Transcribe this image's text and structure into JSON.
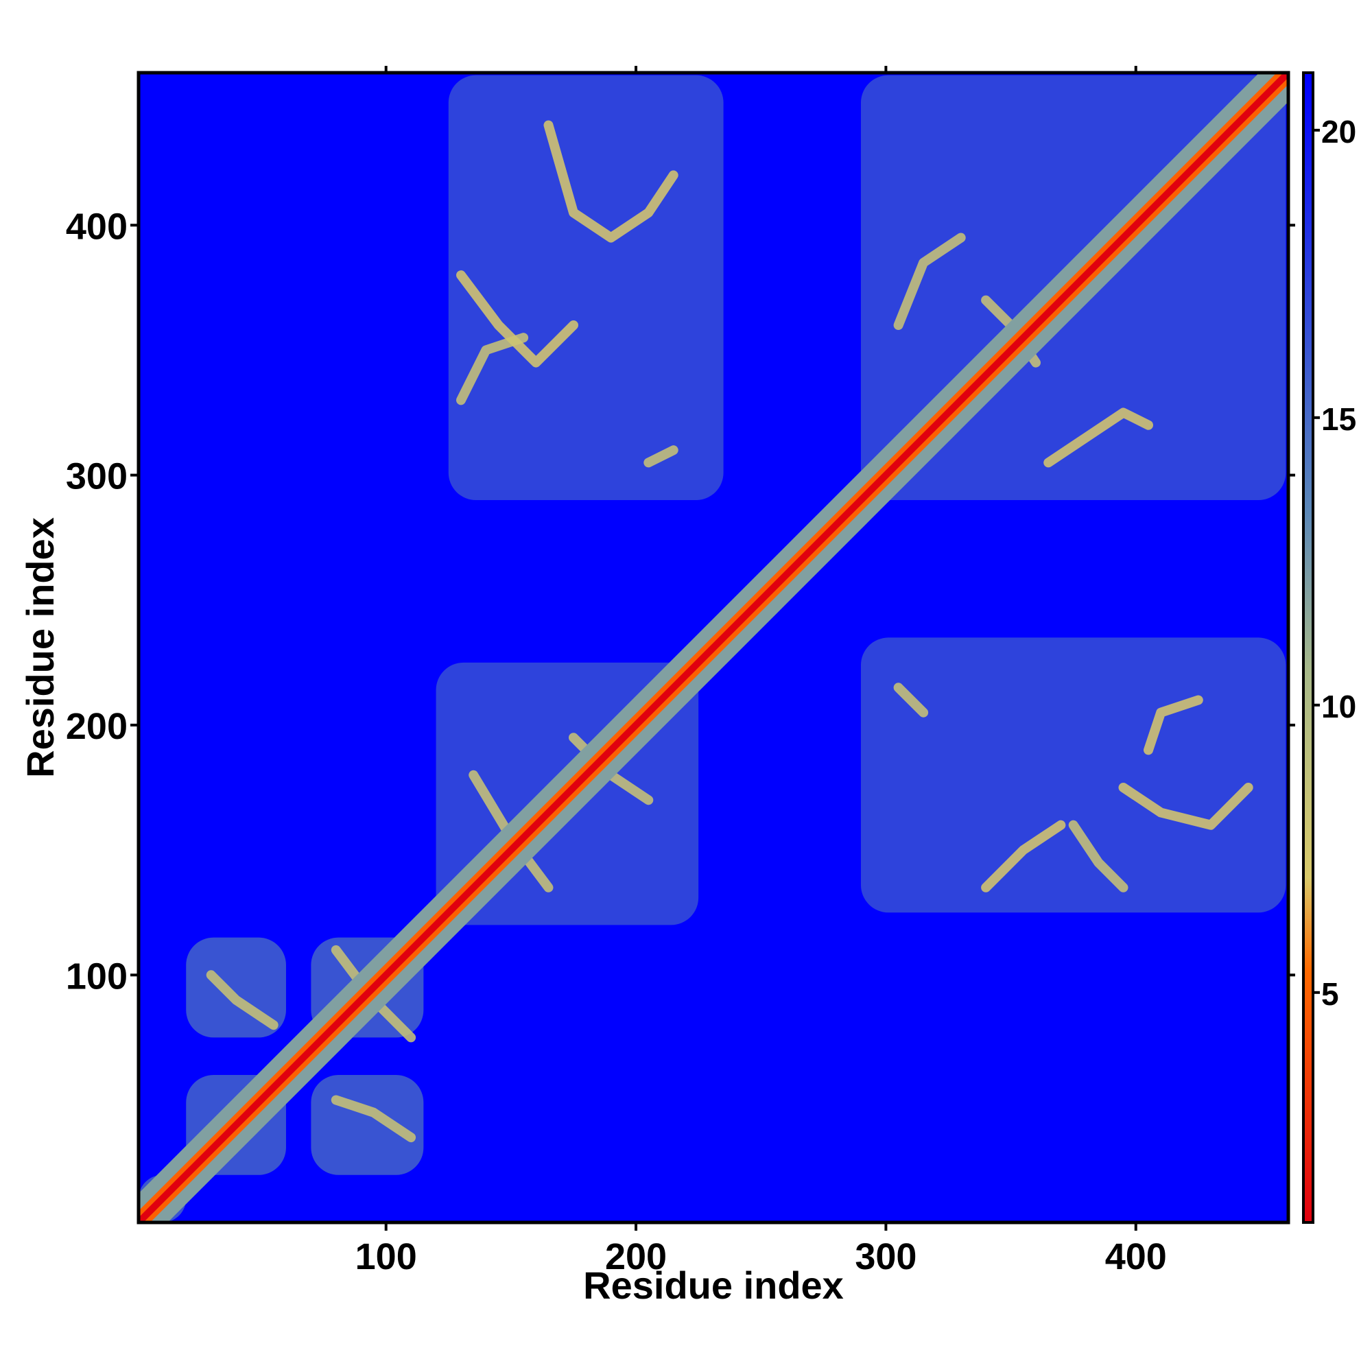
{
  "chart_data": {
    "type": "heatmap",
    "title": "",
    "xlabel": "Residue index",
    "ylabel": "Residue index",
    "xlim": [
      1,
      461
    ],
    "ylim": [
      1,
      461
    ],
    "x_ticks": [
      100,
      200,
      300,
      400
    ],
    "y_ticks": [
      100,
      200,
      300,
      400
    ],
    "colorbar": {
      "label": "",
      "range": [
        1,
        21
      ],
      "ticks": [
        5,
        10,
        15,
        20
      ],
      "colors": [
        "#e0000f",
        "#ff6a00",
        "#d9c96a",
        "#a8b98a",
        "#5b87b8",
        "#0000ff"
      ],
      "stops": [
        0,
        0.22,
        0.3,
        0.48,
        0.62,
        1.0
      ]
    },
    "background_value": 21,
    "diagonal_value": 1,
    "domains": [
      {
        "x0": 1,
        "x1": 20,
        "y0": 1,
        "y1": 20,
        "value": 16
      },
      {
        "x0": 20,
        "x1": 60,
        "y0": 20,
        "y1": 60,
        "value": 16
      },
      {
        "x0": 20,
        "x1": 60,
        "y0": 75,
        "y1": 115,
        "value": 16
      },
      {
        "x0": 70,
        "x1": 115,
        "y0": 20,
        "y1": 60,
        "value": 16
      },
      {
        "x0": 70,
        "x1": 115,
        "y0": 75,
        "y1": 115,
        "value": 16
      },
      {
        "x0": 120,
        "x1": 225,
        "y0": 120,
        "y1": 225,
        "value": 17
      },
      {
        "x0": 125,
        "x1": 235,
        "y0": 290,
        "y1": 460,
        "value": 17
      },
      {
        "x0": 290,
        "x1": 460,
        "y0": 125,
        "y1": 235,
        "value": 17
      },
      {
        "x0": 290,
        "x1": 460,
        "y0": 290,
        "y1": 460,
        "value": 17
      }
    ],
    "contact_arcs": [
      {
        "points": [
          [
            165,
            440
          ],
          [
            175,
            405
          ],
          [
            190,
            395
          ],
          [
            205,
            405
          ],
          [
            215,
            420
          ]
        ],
        "value": 7
      },
      {
        "points": [
          [
            130,
            380
          ],
          [
            145,
            360
          ],
          [
            160,
            345
          ],
          [
            175,
            360
          ]
        ],
        "value": 7
      },
      {
        "points": [
          [
            130,
            330
          ],
          [
            140,
            350
          ],
          [
            155,
            355
          ]
        ],
        "value": 8
      },
      {
        "points": [
          [
            205,
            305
          ],
          [
            215,
            310
          ]
        ],
        "value": 8
      },
      {
        "points": [
          [
            305,
            360
          ],
          [
            315,
            385
          ],
          [
            330,
            395
          ]
        ],
        "value": 8
      },
      {
        "points": [
          [
            340,
            370
          ],
          [
            350,
            360
          ],
          [
            360,
            345
          ]
        ],
        "value": 8
      },
      {
        "points": [
          [
            365,
            305
          ],
          [
            380,
            315
          ],
          [
            395,
            325
          ],
          [
            405,
            320
          ]
        ],
        "value": 7
      },
      {
        "points": [
          [
            405,
            190
          ],
          [
            410,
            205
          ],
          [
            425,
            210
          ]
        ],
        "value": 7
      },
      {
        "points": [
          [
            395,
            175
          ],
          [
            410,
            165
          ],
          [
            430,
            160
          ],
          [
            445,
            175
          ]
        ],
        "value": 7
      },
      {
        "points": [
          [
            340,
            135
          ],
          [
            355,
            150
          ],
          [
            370,
            160
          ]
        ],
        "value": 7
      },
      {
        "points": [
          [
            375,
            160
          ],
          [
            385,
            145
          ],
          [
            395,
            135
          ]
        ],
        "value": 8
      },
      {
        "points": [
          [
            305,
            215
          ],
          [
            315,
            205
          ]
        ],
        "value": 8
      },
      {
        "points": [
          [
            30,
            100
          ],
          [
            40,
            90
          ],
          [
            55,
            80
          ]
        ],
        "value": 8
      },
      {
        "points": [
          [
            80,
            110
          ],
          [
            95,
            90
          ],
          [
            110,
            75
          ]
        ],
        "value": 8
      },
      {
        "points": [
          [
            80,
            50
          ],
          [
            95,
            45
          ],
          [
            110,
            35
          ]
        ],
        "value": 8
      },
      {
        "points": [
          [
            175,
            195
          ],
          [
            190,
            180
          ],
          [
            205,
            170
          ]
        ],
        "value": 8
      },
      {
        "points": [
          [
            135,
            180
          ],
          [
            150,
            155
          ],
          [
            165,
            135
          ]
        ],
        "value": 8
      }
    ]
  }
}
